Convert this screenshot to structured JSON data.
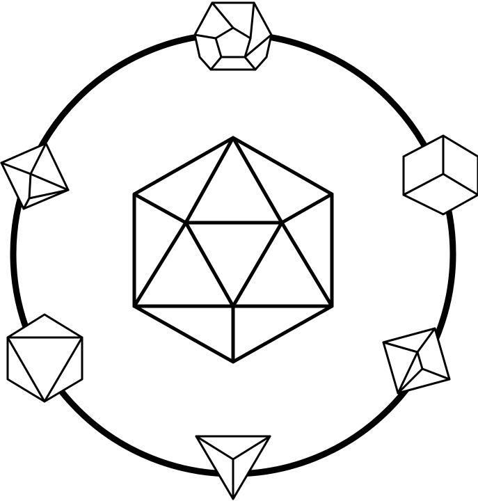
{
  "figure": {
    "background": "#ffffff",
    "line_color": "#000000",
    "shapes": [
      {
        "id": "orbit-ring",
        "kind": "circle"
      },
      {
        "id": "icosahedron",
        "kind": "polyhedron",
        "faces": 20
      },
      {
        "id": "dodecahedron",
        "kind": "polyhedron",
        "faces": 12
      },
      {
        "id": "cube",
        "kind": "polyhedron",
        "faces": 6
      },
      {
        "id": "octahedron-right",
        "kind": "polyhedron",
        "faces": 8
      },
      {
        "id": "tetrahedron",
        "kind": "polyhedron",
        "faces": 4
      },
      {
        "id": "octahedron-left",
        "kind": "polyhedron",
        "faces": 8
      },
      {
        "id": "octahedron-upper-left",
        "kind": "polyhedron",
        "faces": 8
      }
    ]
  }
}
